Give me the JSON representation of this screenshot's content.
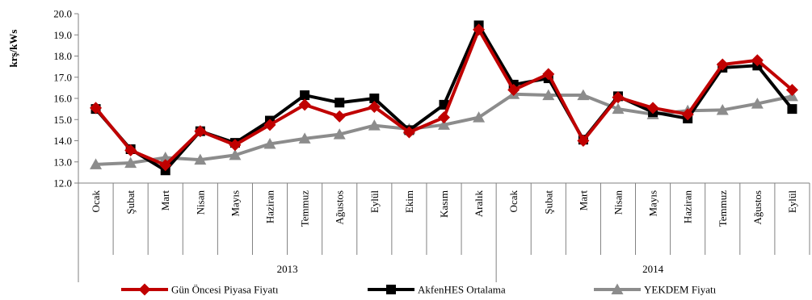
{
  "chart_data": {
    "type": "line",
    "ylabel": "krş/kWs",
    "ylim": [
      12.0,
      20.0
    ],
    "yticks": [
      "12.0",
      "13.0",
      "14.0",
      "15.0",
      "16.0",
      "17.0",
      "18.0",
      "19.0",
      "20.0"
    ],
    "categories": [
      "Ocak",
      "Şubat",
      "Mart",
      "Nisan",
      "Mayıs",
      "Haziran",
      "Temmuz",
      "Ağustos",
      "Eylül",
      "Ekim",
      "Kasım",
      "Aralık",
      "Ocak",
      "Şubat",
      "Mart",
      "Nisan",
      "Mayıs",
      "Haziran",
      "Temmuz",
      "Ağustos",
      "Eylül"
    ],
    "groups": [
      {
        "label": "2013",
        "count": 12
      },
      {
        "label": "2014",
        "count": 9
      }
    ],
    "series": [
      {
        "name": "Gün Öncesi Piyasa Fiyatı",
        "color": "#c00000",
        "marker": "diamond",
        "values": [
          15.55,
          13.55,
          12.85,
          14.45,
          13.8,
          14.75,
          15.7,
          15.15,
          15.6,
          14.4,
          15.1,
          19.25,
          16.4,
          17.15,
          14.0,
          16.05,
          15.55,
          15.25,
          17.6,
          17.8,
          16.4
        ]
      },
      {
        "name": "AkfenHES Ortalama",
        "color": "#000000",
        "marker": "square",
        "values": [
          15.5,
          13.6,
          12.6,
          14.45,
          13.9,
          14.95,
          16.15,
          15.8,
          16.0,
          14.5,
          15.7,
          19.45,
          16.65,
          16.95,
          14.05,
          16.1,
          15.35,
          15.05,
          17.45,
          17.55,
          15.5
        ]
      },
      {
        "name": "YEKDEM Fiyatı",
        "color": "#8c8c8c",
        "marker": "triangle",
        "values": [
          12.88,
          12.95,
          13.2,
          13.1,
          13.32,
          13.85,
          14.1,
          14.3,
          14.72,
          14.55,
          14.75,
          15.1,
          16.2,
          16.15,
          16.15,
          15.5,
          15.25,
          15.42,
          15.45,
          15.75,
          16.1
        ]
      }
    ],
    "legend_position": "bottom",
    "grid": false
  }
}
